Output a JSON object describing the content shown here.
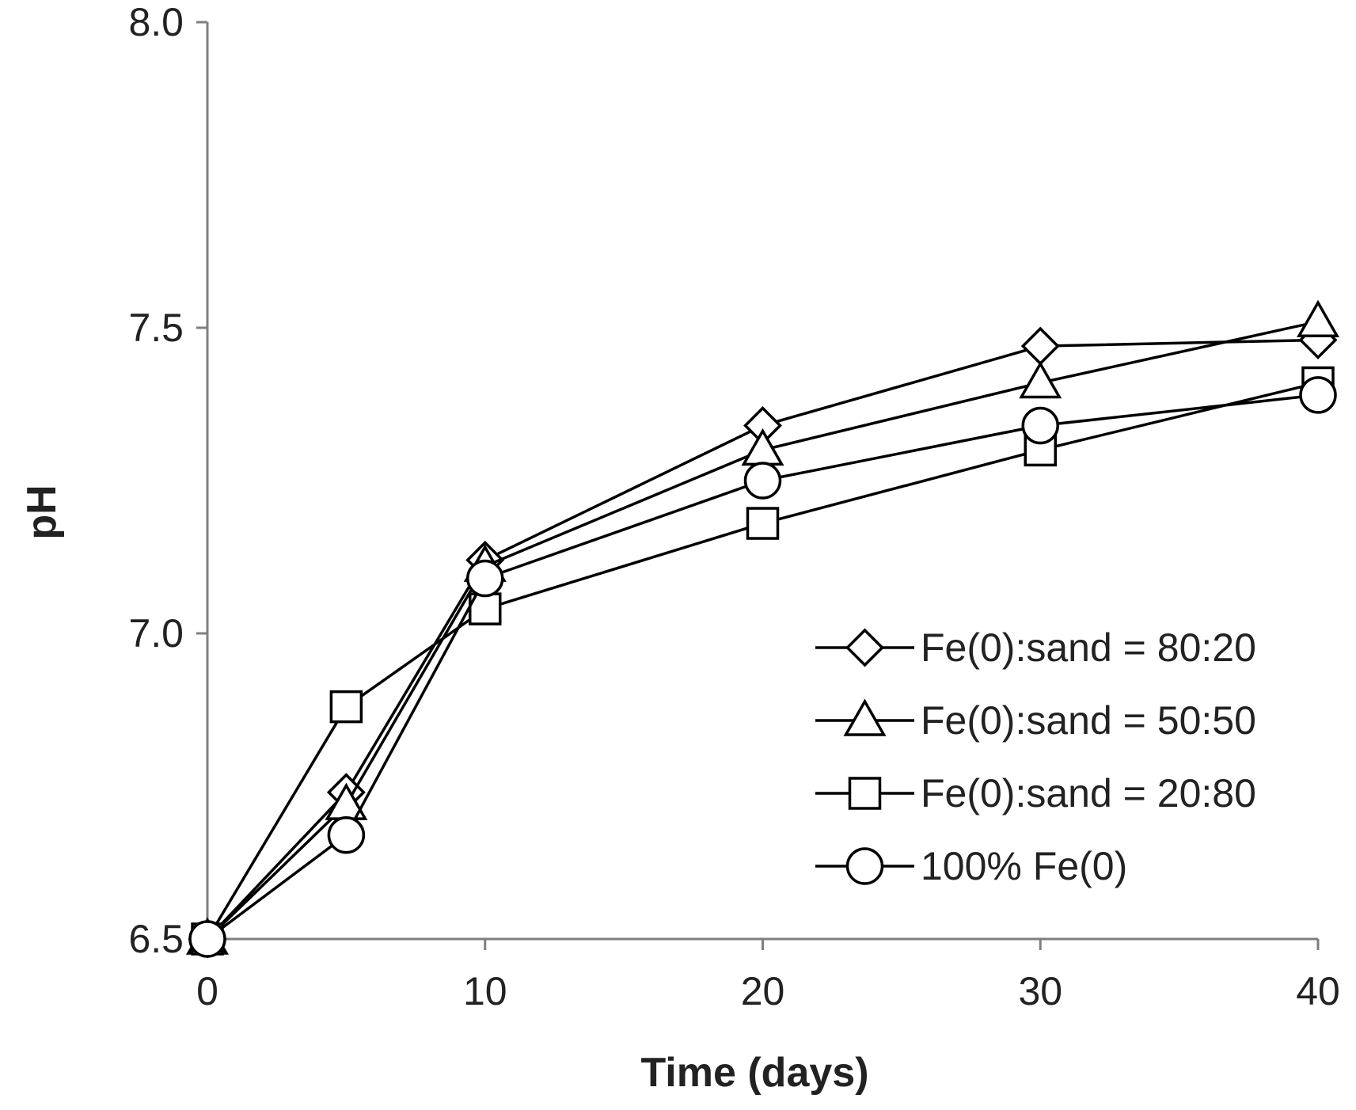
{
  "chart_data": {
    "type": "line",
    "title": "",
    "xlabel": "Time (days)",
    "ylabel": "pH",
    "xlim": [
      0,
      40
    ],
    "ylim": [
      6.5,
      8.0
    ],
    "x_ticks": [
      0,
      10,
      20,
      30,
      40
    ],
    "x_tick_labels": [
      "0",
      "10",
      "20",
      "30",
      "40"
    ],
    "y_ticks": [
      6.5,
      7.0,
      7.5,
      8.0
    ],
    "y_tick_labels": [
      "6.5",
      "7.0",
      "7.5",
      "8.0"
    ],
    "grid": false,
    "legend_position": "center-right",
    "x": [
      0,
      5,
      10,
      20,
      30,
      40
    ],
    "series": [
      {
        "name": "Fe(0):sand = 80:20",
        "marker": "diamond",
        "values": [
          6.5,
          6.74,
          7.12,
          7.34,
          7.47,
          7.48
        ]
      },
      {
        "name": "Fe(0):sand = 50:50",
        "marker": "triangle",
        "values": [
          6.5,
          6.72,
          7.11,
          7.3,
          7.41,
          7.51
        ]
      },
      {
        "name": "Fe(0):sand = 20:80",
        "marker": "square",
        "values": [
          6.5,
          6.88,
          7.04,
          7.18,
          7.3,
          7.41
        ]
      },
      {
        "name": "100% Fe(0)",
        "marker": "circle",
        "values": [
          6.5,
          6.67,
          7.09,
          7.25,
          7.34,
          7.39
        ]
      }
    ],
    "line_color": "#000000",
    "axis_color": "#7f7f7f"
  }
}
